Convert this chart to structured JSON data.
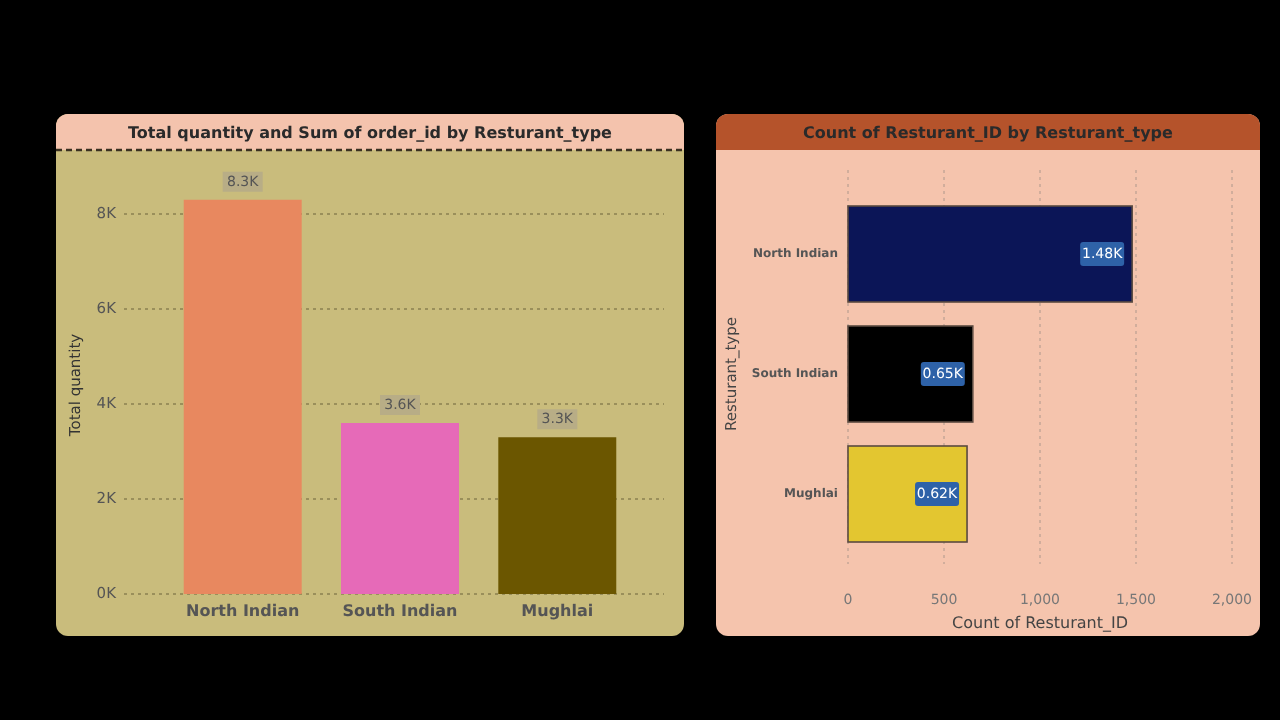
{
  "chart_data": [
    {
      "type": "bar",
      "title": "Total quantity and Sum of order_id by Resturant_type",
      "ylabel": "Total quantity",
      "categories": [
        "North Indian",
        "South Indian",
        "Mughlai"
      ],
      "values": [
        8300,
        3600,
        3300
      ],
      "colors": [
        "#e8885f",
        "#e66ab8",
        "#6b5600"
      ],
      "value_labels": [
        "8.3K",
        "3.6K",
        "3.3K"
      ],
      "ylim": [
        0,
        8800
      ],
      "yticks": [
        {
          "value": 0,
          "label": "0K"
        },
        {
          "value": 2000,
          "label": "2K"
        },
        {
          "value": 4000,
          "label": "4K"
        },
        {
          "value": 6000,
          "label": "6K"
        },
        {
          "value": 8000,
          "label": "8K"
        }
      ],
      "grid": "y"
    },
    {
      "type": "bar",
      "orientation": "horizontal",
      "title": "Count of Resturant_ID by Resturant_type",
      "xlabel": "Count of Resturant_ID",
      "ylabel": "Resturant_type",
      "categories": [
        "North Indian",
        "South Indian",
        "Mughlai"
      ],
      "values": [
        1480,
        650,
        620
      ],
      "colors": [
        "#0b1557",
        "#000000",
        "#e3c630"
      ],
      "value_labels": [
        "1.48K",
        "0.65K",
        "0.62K"
      ],
      "xlim": [
        0,
        2000
      ],
      "xticks": [
        0,
        500,
        {
          "value": 1000,
          "label": "1,000"
        },
        {
          "value": 1500,
          "label": "1,500"
        },
        {
          "value": 2000,
          "label": "2,000"
        }
      ],
      "grid": "x"
    }
  ]
}
